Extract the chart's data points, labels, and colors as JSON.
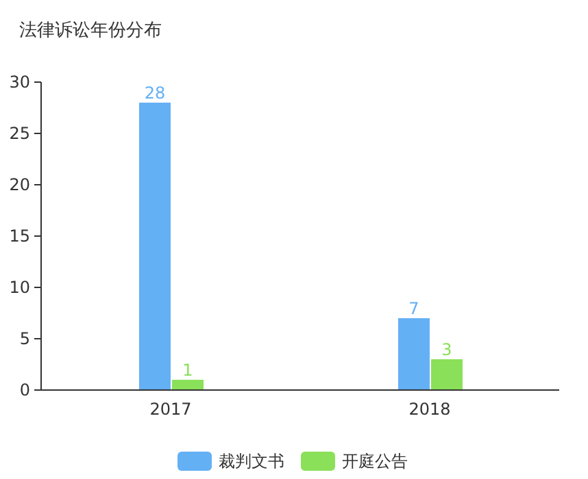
{
  "chart_data": {
    "type": "bar",
    "title": "法律诉讼年份分布",
    "categories": [
      "2017",
      "2018"
    ],
    "series": [
      {
        "name": "裁判文书",
        "color": "#64b0f5",
        "values": [
          28,
          7
        ]
      },
      {
        "name": "开庭公告",
        "color": "#8be05a",
        "values": [
          1,
          3
        ]
      }
    ],
    "ylim": [
      0,
      30
    ],
    "yticks": [
      0,
      5,
      10,
      15,
      20,
      25,
      30
    ],
    "grid": false,
    "legend": "bottom",
    "data_labels": true
  }
}
